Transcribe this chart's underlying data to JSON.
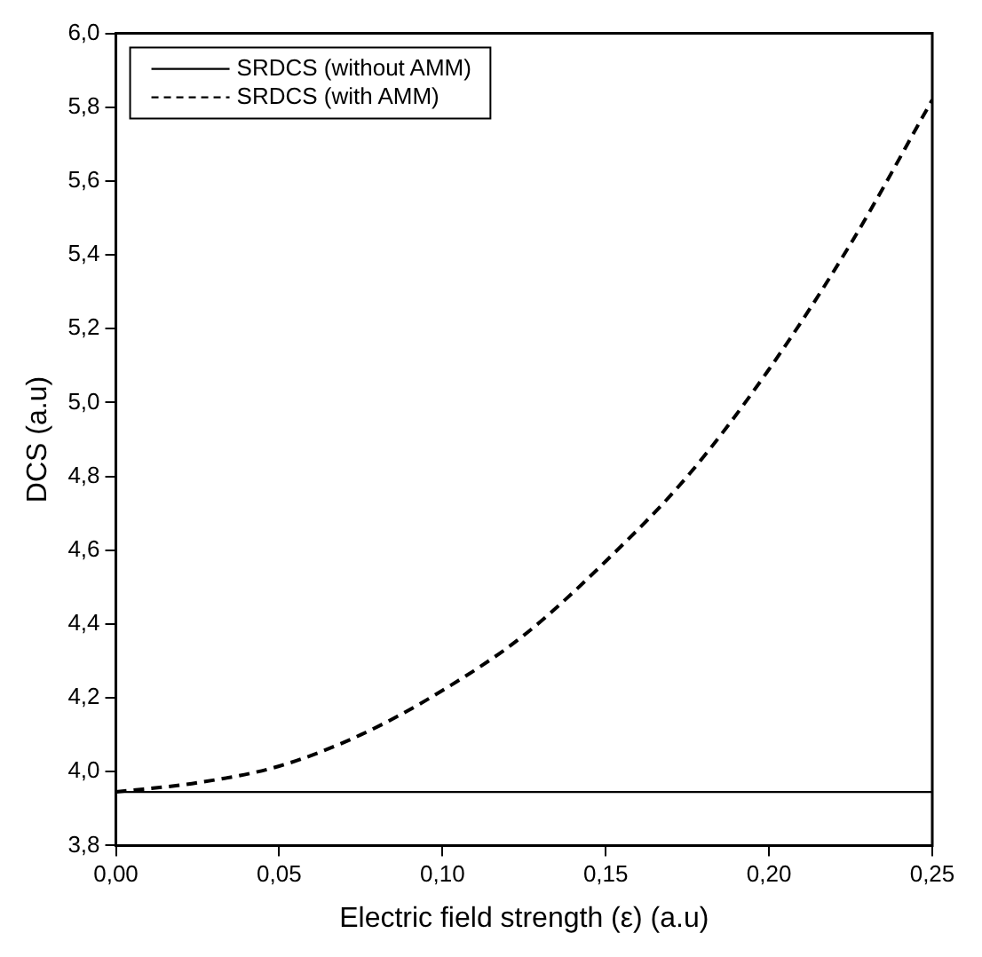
{
  "chart_data": {
    "type": "line",
    "xlabel": "Electric field strength (ε) (a.u)",
    "ylabel": "DCS (a.u)",
    "x": [
      0,
      0.025,
      0.05,
      0.075,
      0.1,
      0.125,
      0.15,
      0.175,
      0.2,
      0.225,
      0.25
    ],
    "series": [
      {
        "name": "SRDCS (without AMM)",
        "color": "#000000",
        "line_style": "solid",
        "values": [
          3.945,
          3.945,
          3.945,
          3.945,
          3.945,
          3.945,
          3.945,
          3.945,
          3.945,
          3.945,
          3.945
        ]
      },
      {
        "name": "SRDCS (with AMM)",
        "color": "#000000",
        "line_style": "dashed",
        "values": [
          3.945,
          3.97,
          4.015,
          4.1,
          4.22,
          4.37,
          4.57,
          4.8,
          5.09,
          5.43,
          5.82
        ]
      }
    ],
    "xlim": [
      0,
      0.25
    ],
    "xticks": [
      {
        "value": 0,
        "label": "0,00"
      },
      {
        "value": 0.05,
        "label": "0,05"
      },
      {
        "value": 0.1,
        "label": "0,10"
      },
      {
        "value": 0.15,
        "label": "0,15"
      },
      {
        "value": 0.2,
        "label": "0,20"
      },
      {
        "value": 0.25,
        "label": "0,25"
      }
    ],
    "ylim": [
      3.8,
      6.0
    ],
    "yticks": [
      {
        "value": 3.8,
        "label": "3,8"
      },
      {
        "value": 4.0,
        "label": "4,0"
      },
      {
        "value": 4.2,
        "label": "4,2"
      },
      {
        "value": 4.4,
        "label": "4,4"
      },
      {
        "value": 4.6,
        "label": "4,6"
      },
      {
        "value": 4.8,
        "label": "4,8"
      },
      {
        "value": 5.0,
        "label": "5,0"
      },
      {
        "value": 5.2,
        "label": "5,2"
      },
      {
        "value": 5.4,
        "label": "5,4"
      },
      {
        "value": 5.6,
        "label": "5,6"
      },
      {
        "value": 5.8,
        "label": "5,8"
      },
      {
        "value": 6.0,
        "label": "6,0"
      }
    ],
    "grid": false,
    "legend": "top left",
    "marker": "none"
  }
}
